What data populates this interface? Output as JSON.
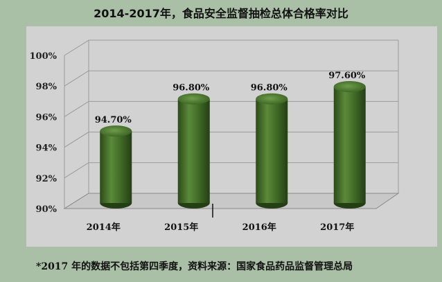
{
  "chart_data": {
    "type": "bar",
    "title": "2014-2017年，食品安全监督抽检总体合格率对比",
    "categories": [
      "2014年",
      "2015年",
      "2016年",
      "2017年"
    ],
    "values": [
      94.7,
      96.8,
      96.8,
      97.6
    ],
    "data_labels": [
      "94.70%",
      "96.80%",
      "96.80%",
      "97.60%"
    ],
    "yticks": [
      90,
      92,
      94,
      96,
      98,
      100
    ],
    "ytick_labels": [
      "90%",
      "92%",
      "94%",
      "96%",
      "98%",
      "100%"
    ],
    "ylim": [
      90,
      100
    ],
    "xlabel": "",
    "ylabel": "",
    "grid": true,
    "legend": "none",
    "bar_color": "#3f6b26",
    "plot_background": "#d2d2d2"
  },
  "footnote": "*2017 年的数据不包括第四季度，资料来源：国家食品药品监督管理总局"
}
